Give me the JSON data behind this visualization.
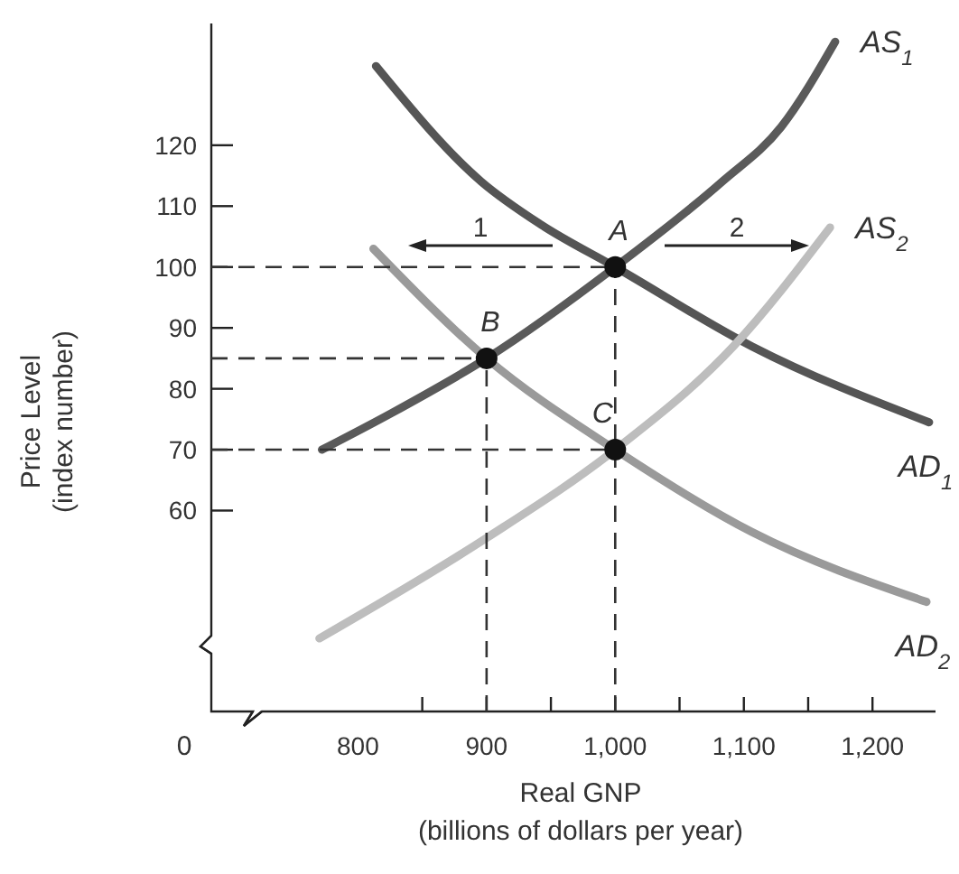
{
  "chart_data": {
    "type": "line",
    "xlabel": "Real GNP\n(billions of dollars per year)",
    "ylabel": "Price Level\n(index number)",
    "xlim": [
      686,
      1249
    ],
    "ylim": [
      27,
      140
    ],
    "xticks": [
      800,
      {
        "value": 850,
        "label": null
      },
      900,
      {
        "value": 950,
        "label": null
      },
      {
        "value": 1000,
        "label": "1,000"
      },
      {
        "value": 1050,
        "label": null
      },
      {
        "value": 1100,
        "label": "1,100"
      },
      {
        "value": 1150,
        "label": null
      },
      {
        "value": 1200,
        "label": "1,200"
      }
    ],
    "yticks": [
      60,
      70,
      80,
      90,
      100,
      110,
      120
    ],
    "grid": false,
    "marker": "none",
    "series": [
      {
        "name": "AS$_{1}$",
        "color": "#5a5a5a",
        "x": [
          772,
          826,
          900,
          1000,
          1083,
          1129,
          1171
        ],
        "values": [
          70,
          76,
          85,
          100,
          114,
          123,
          137
        ]
      },
      {
        "name": "AD$_{1}$",
        "color": "#555555",
        "x": [
          814,
          896,
          942,
          1000,
          1106,
          1244
        ],
        "values": [
          133,
          114,
          107,
          100,
          87,
          74.5
        ]
      },
      {
        "name": "AD$_{2}$",
        "color": "#9a9a9a",
        "x": [
          812,
          900,
          1000,
          1106,
          1242
        ],
        "values": [
          103,
          85,
          70,
          56.5,
          45
        ]
      },
      {
        "name": "AS$_{2}$",
        "color": "#bdbdbd",
        "x": [
          770,
          900,
          1000,
          1092,
          1167
        ],
        "values": [
          39,
          55.5,
          70,
          87,
          106.5
        ]
      },
      {
        "color": "#333333",
        "line_style": "dashed",
        "x": [
          686,
          1000
        ],
        "values": [
          100,
          100
        ]
      },
      {
        "color": "#333333",
        "line_style": "dashed",
        "x": [
          686,
          900
        ],
        "values": [
          85,
          85
        ]
      },
      {
        "color": "#333333",
        "line_style": "dashed",
        "x": [
          686,
          1000
        ],
        "values": [
          70,
          70
        ]
      },
      {
        "color": "#333333",
        "line_style": "dashed",
        "x": [
          900,
          900
        ],
        "values": [
          27,
          85
        ]
      },
      {
        "color": "#333333",
        "line_style": "dashed",
        "x": [
          1000,
          1000
        ],
        "values": [
          27,
          100
        ]
      },
      {
        "type": "scatter",
        "marker": "circle",
        "color": "#111111",
        "x": [
          1000,
          900,
          1000
        ],
        "values": [
          100,
          85,
          70
        ]
      }
    ],
    "annotations": [
      "A",
      "B",
      "C",
      "1",
      "2",
      "0"
    ]
  }
}
